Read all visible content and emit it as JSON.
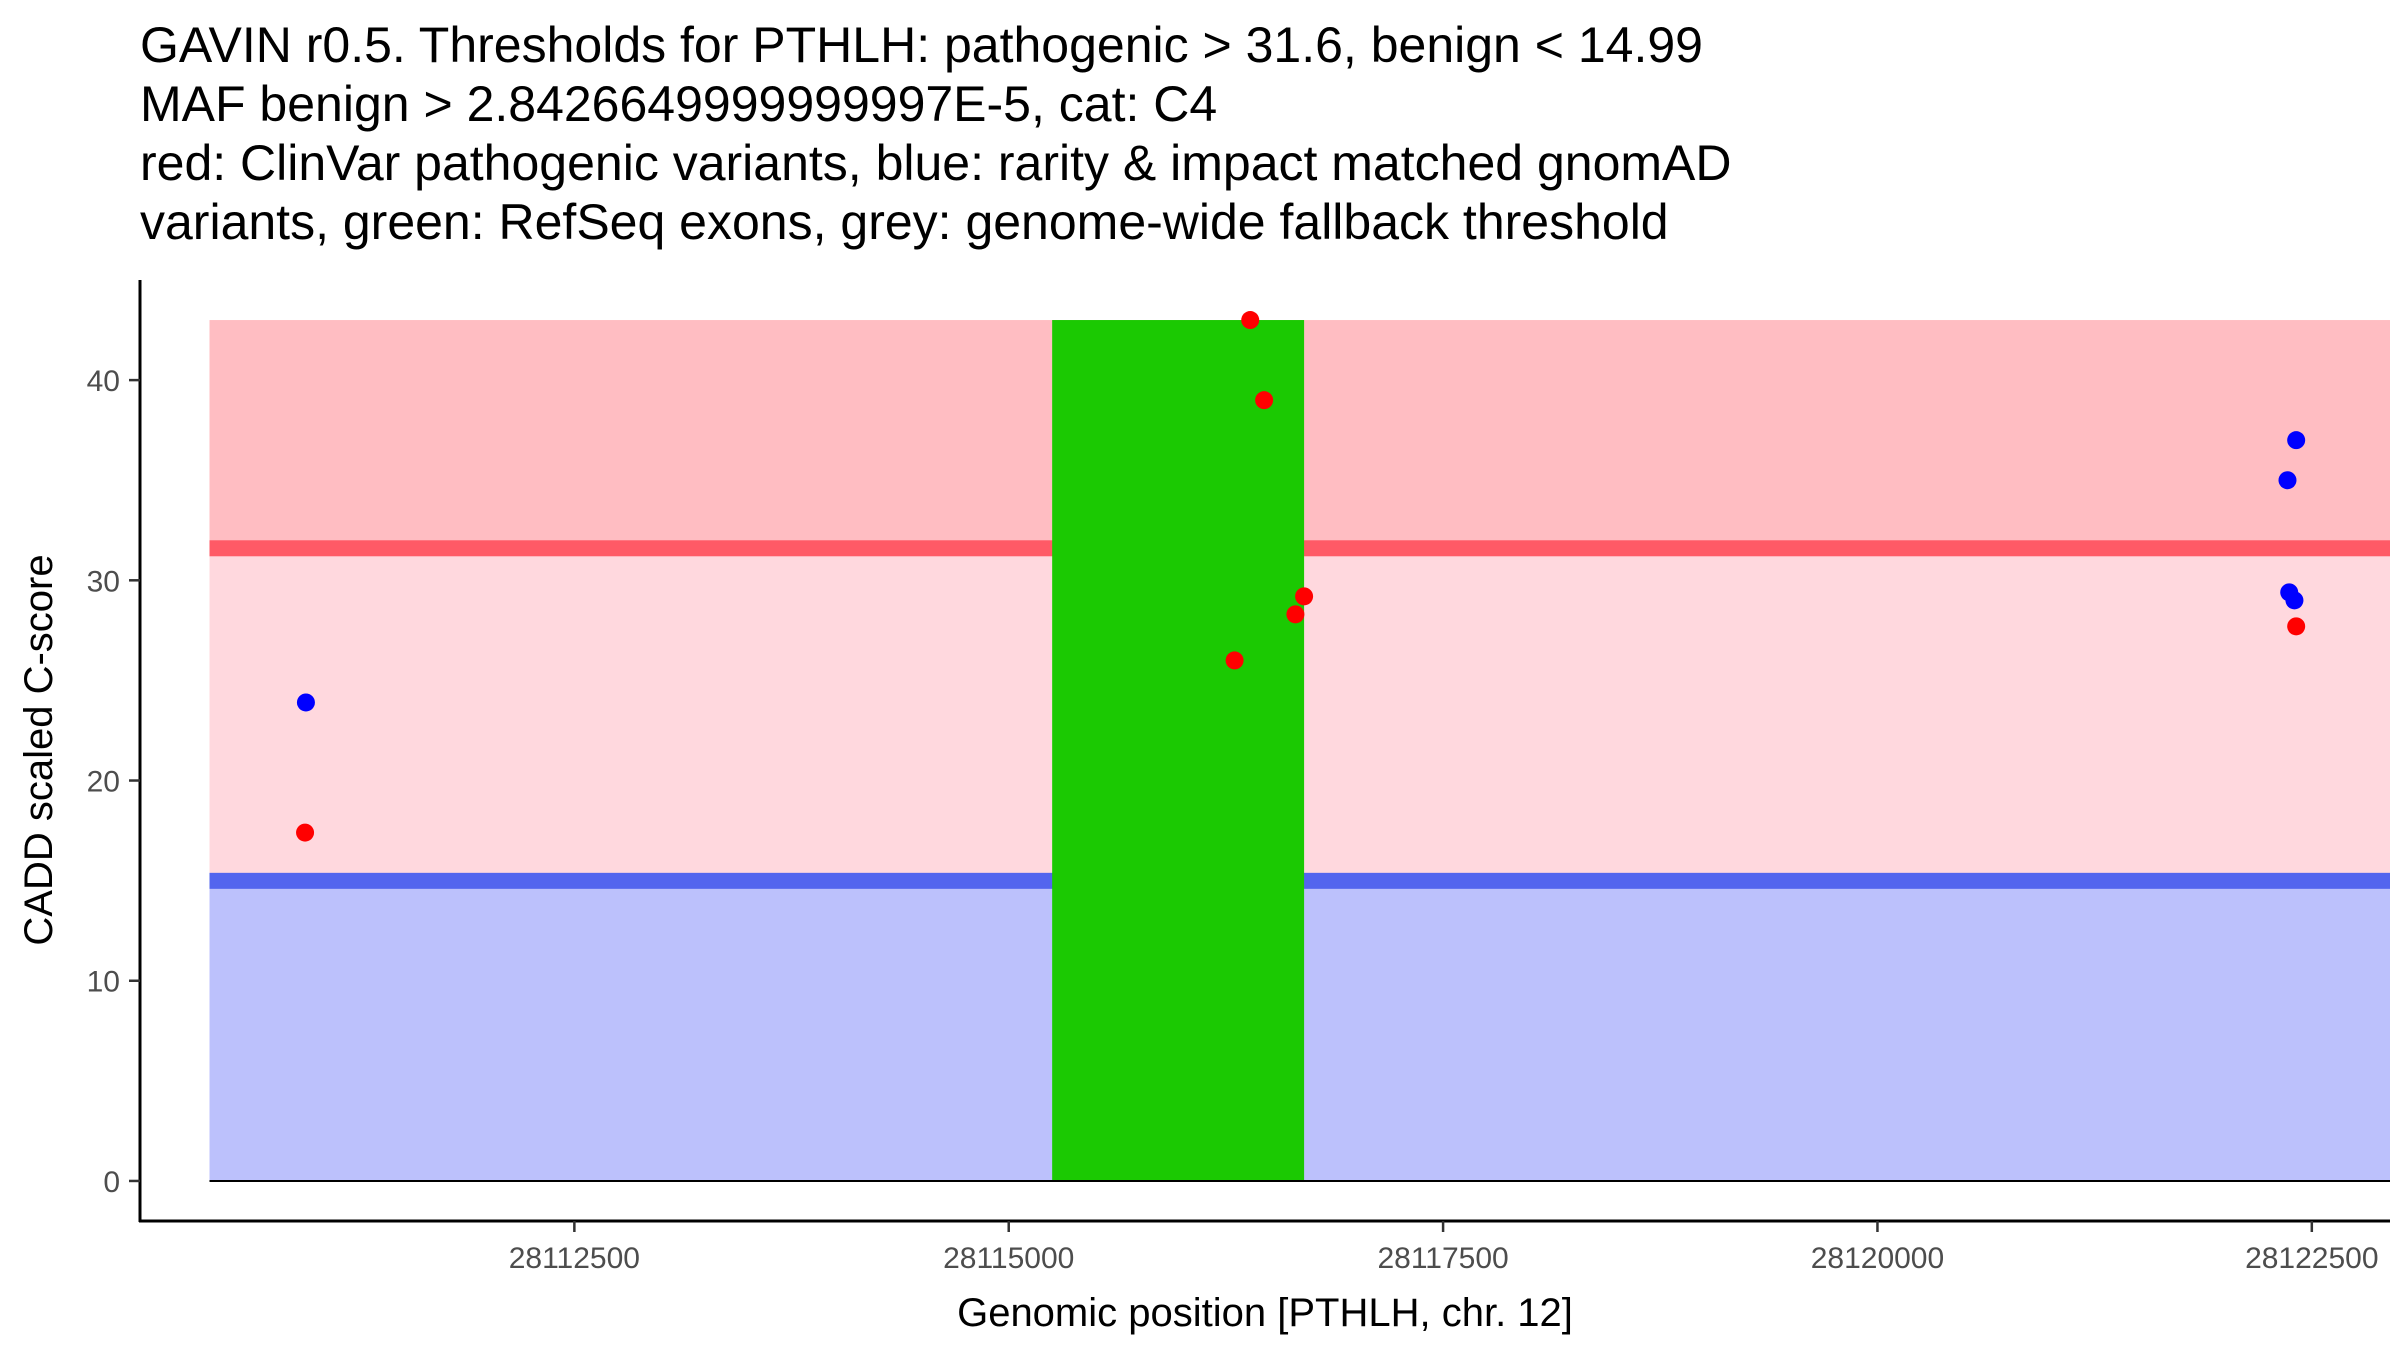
{
  "chart_data": {
    "type": "scatter",
    "title_lines": [
      "GAVIN r0.5. Thresholds for PTHLH: pathogenic > 31.6, benign < 14.99",
      "MAF benign > 2.8426649999999997E-5, cat: C4",
      "red: ClinVar pathogenic variants, blue: rarity & impact matched gnomAD",
      "variants, green: RefSeq exons, grey: genome-wide fallback threshold"
    ],
    "xlabel": "Genomic position [PTHLH, chr. 12]",
    "ylabel": "CADD scaled C-score",
    "xlim": [
      28110000,
      28122950
    ],
    "ylim": [
      -2,
      45
    ],
    "x_ticks": [
      28112500,
      28115000,
      28117500,
      28120000,
      28122500
    ],
    "y_ticks": [
      0,
      10,
      20,
      30,
      40
    ],
    "grid": false,
    "legend": "none",
    "colors": {
      "pathogenic_region": "#ffbdc2",
      "vus_region": "#ffd8de",
      "benign_region": "#bcc1fc",
      "pathogenic_threshold_line": "#ff5a66",
      "benign_threshold_line": "#5365ee",
      "exon": "#1bc902",
      "clinvar": "#ff0000",
      "gnomad": "#0000ff"
    },
    "regions": {
      "x_start": 28110400,
      "x_end": 28122950,
      "pathogenic": [
        31.6,
        43
      ],
      "vus": [
        14.99,
        31.6
      ],
      "benign": [
        0,
        14.99
      ]
    },
    "thresholds": {
      "pathogenic": 31.6,
      "benign": 14.99
    },
    "exons": [
      {
        "start": 28115250,
        "end": 28116700
      }
    ],
    "series": [
      {
        "name": "ClinVar pathogenic variants",
        "color": "#ff0000",
        "points": [
          {
            "x": 28110950,
            "y": 17.4
          },
          {
            "x": 28116300,
            "y": 26.0
          },
          {
            "x": 28116390,
            "y": 43.0
          },
          {
            "x": 28116470,
            "y": 39.0
          },
          {
            "x": 28116650,
            "y": 28.3
          },
          {
            "x": 28116700,
            "y": 29.2
          },
          {
            "x": 28122410,
            "y": 27.7
          }
        ]
      },
      {
        "name": "gnomAD matched variants",
        "color": "#0000ff",
        "points": [
          {
            "x": 28110955,
            "y": 23.9
          },
          {
            "x": 28122360,
            "y": 35.0
          },
          {
            "x": 28122410,
            "y": 37.0
          },
          {
            "x": 28122370,
            "y": 29.4
          },
          {
            "x": 28122400,
            "y": 29.0
          }
        ]
      }
    ]
  }
}
